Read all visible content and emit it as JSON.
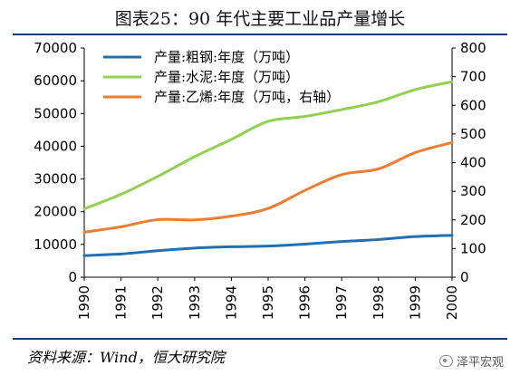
{
  "page": {
    "title": "图表25：90 年代主要工业品产量增长",
    "source": "资料来源：Wind，恒大研究院",
    "watermark": "泽平宏观"
  },
  "chart_data": {
    "type": "line",
    "title": "图表25：90 年代主要工业品产量增长",
    "x": [
      1990,
      1991,
      1992,
      1993,
      1994,
      1995,
      1996,
      1997,
      1998,
      1999,
      2000
    ],
    "x_tick_labels": [
      "1990",
      "1991",
      "1992",
      "1993",
      "1994",
      "1995",
      "1996",
      "1997",
      "1998",
      "1999",
      "2000"
    ],
    "y_left": {
      "range": [
        0,
        70000
      ],
      "ticks": [
        0,
        10000,
        20000,
        30000,
        40000,
        50000,
        60000,
        70000
      ],
      "tick_labels": [
        "0",
        "10000",
        "20000",
        "30000",
        "40000",
        "50000",
        "60000",
        "70000"
      ]
    },
    "y_right": {
      "range": [
        0,
        800
      ],
      "ticks": [
        0,
        100,
        200,
        300,
        400,
        500,
        600,
        700,
        800
      ],
      "tick_labels": [
        "0",
        "100",
        "200",
        "300",
        "400",
        "500",
        "600",
        "700",
        "800"
      ]
    },
    "grid": false,
    "legend_position": "top-left",
    "series": [
      {
        "name": "产量:粗钢:年度（万吨）",
        "axis": "left",
        "color": "#1f6fb5",
        "values": [
          6600,
          7100,
          8100,
          8900,
          9300,
          9500,
          10100,
          10900,
          11500,
          12400,
          12800
        ]
      },
      {
        "name": "产量:水泥:年度（万吨）",
        "axis": "left",
        "color": "#92d050",
        "values": [
          20900,
          25300,
          30800,
          36800,
          42100,
          47600,
          49100,
          51200,
          53600,
          57300,
          59700
        ]
      },
      {
        "name": "产量:乙烯:年度（万吨，右轴）",
        "axis": "right",
        "color": "#ed7d31",
        "values": [
          157,
          176,
          201,
          200,
          213,
          240,
          303,
          358,
          378,
          435,
          470
        ]
      }
    ]
  }
}
